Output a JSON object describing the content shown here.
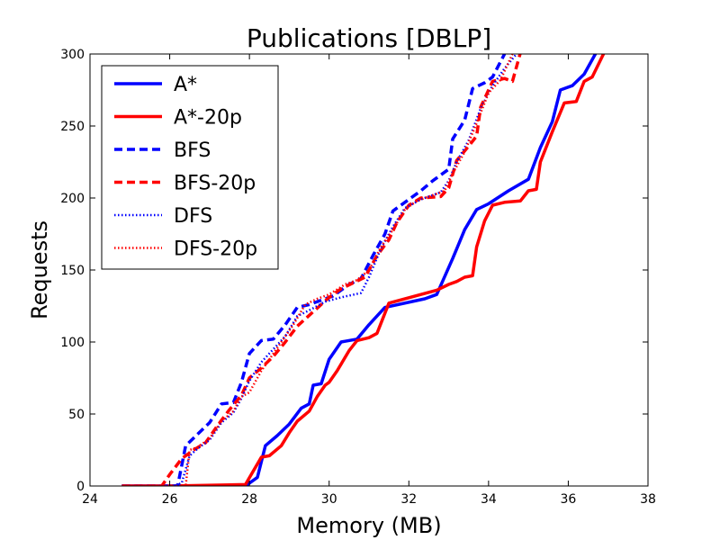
{
  "chart_data": {
    "type": "line",
    "title": "Publications [DBLP]",
    "xlabel": "Memory (MB)",
    "ylabel": "Requests",
    "xlim": [
      24,
      38
    ],
    "ylim": [
      0,
      300
    ],
    "xticks": [
      24,
      26,
      28,
      30,
      32,
      34,
      36,
      38
    ],
    "yticks": [
      0,
      50,
      100,
      150,
      200,
      250,
      300
    ],
    "legend_position": "top-left",
    "grid": false,
    "series": [
      {
        "name": "A*",
        "color": "#0000ff",
        "style": "solid",
        "points": [
          [
            24.8,
            0
          ],
          [
            27.9,
            0
          ],
          [
            28.2,
            6
          ],
          [
            28.4,
            28
          ],
          [
            28.7,
            35
          ],
          [
            29.0,
            43
          ],
          [
            29.3,
            54
          ],
          [
            29.5,
            57
          ],
          [
            29.6,
            70
          ],
          [
            29.8,
            71
          ],
          [
            30.0,
            88
          ],
          [
            30.3,
            100
          ],
          [
            30.7,
            102
          ],
          [
            31.0,
            112
          ],
          [
            31.4,
            124
          ],
          [
            32.4,
            130
          ],
          [
            32.7,
            133
          ],
          [
            33.1,
            158
          ],
          [
            33.4,
            178
          ],
          [
            33.7,
            192
          ],
          [
            34.0,
            196
          ],
          [
            34.5,
            205
          ],
          [
            35.0,
            213
          ],
          [
            35.3,
            235
          ],
          [
            35.6,
            253
          ],
          [
            35.8,
            275
          ],
          [
            36.1,
            278
          ],
          [
            36.4,
            286
          ],
          [
            36.7,
            301
          ]
        ]
      },
      {
        "name": "A*-20p",
        "color": "#ff0000",
        "style": "solid",
        "points": [
          [
            24.8,
            0
          ],
          [
            26.0,
            0
          ],
          [
            27.9,
            1
          ],
          [
            28.3,
            20
          ],
          [
            28.5,
            21
          ],
          [
            28.8,
            28
          ],
          [
            29.0,
            37
          ],
          [
            29.2,
            45
          ],
          [
            29.5,
            52
          ],
          [
            29.7,
            62
          ],
          [
            29.9,
            70
          ],
          [
            30.0,
            72
          ],
          [
            30.2,
            80
          ],
          [
            30.5,
            94
          ],
          [
            30.7,
            101
          ],
          [
            31.0,
            103
          ],
          [
            31.2,
            106
          ],
          [
            31.5,
            127
          ],
          [
            32.7,
            136
          ],
          [
            33.0,
            140
          ],
          [
            33.2,
            142
          ],
          [
            33.4,
            145
          ],
          [
            33.6,
            146
          ],
          [
            33.7,
            166
          ],
          [
            33.9,
            184
          ],
          [
            34.1,
            195
          ],
          [
            34.4,
            197
          ],
          [
            34.8,
            198
          ],
          [
            35.0,
            205
          ],
          [
            35.2,
            206
          ],
          [
            35.3,
            225
          ],
          [
            35.6,
            246
          ],
          [
            35.9,
            266
          ],
          [
            36.2,
            267
          ],
          [
            36.4,
            281
          ],
          [
            36.6,
            284
          ],
          [
            36.9,
            301
          ]
        ]
      },
      {
        "name": "BFS",
        "color": "#0000ff",
        "style": "dashed",
        "points": [
          [
            24.8,
            0
          ],
          [
            26.2,
            0
          ],
          [
            26.4,
            28
          ],
          [
            26.7,
            36
          ],
          [
            27.0,
            44
          ],
          [
            27.3,
            57
          ],
          [
            27.6,
            58
          ],
          [
            27.8,
            72
          ],
          [
            28.0,
            92
          ],
          [
            28.3,
            101
          ],
          [
            28.6,
            102
          ],
          [
            28.9,
            112
          ],
          [
            29.2,
            124
          ],
          [
            29.5,
            126
          ],
          [
            29.8,
            129
          ],
          [
            30.1,
            132
          ],
          [
            30.5,
            140
          ],
          [
            30.8,
            144
          ],
          [
            31.1,
            160
          ],
          [
            31.4,
            175
          ],
          [
            31.6,
            191
          ],
          [
            31.9,
            197
          ],
          [
            32.3,
            205
          ],
          [
            32.6,
            212
          ],
          [
            33.0,
            220
          ],
          [
            33.1,
            241
          ],
          [
            33.4,
            254
          ],
          [
            33.6,
            276
          ],
          [
            33.9,
            280
          ],
          [
            34.1,
            284
          ],
          [
            34.4,
            300
          ]
        ]
      },
      {
        "name": "BFS-20p",
        "color": "#ff0000",
        "style": "dashed",
        "points": [
          [
            24.8,
            0
          ],
          [
            25.8,
            0
          ],
          [
            26.0,
            8
          ],
          [
            26.3,
            19
          ],
          [
            26.6,
            25
          ],
          [
            26.9,
            30
          ],
          [
            27.2,
            42
          ],
          [
            27.5,
            53
          ],
          [
            27.8,
            63
          ],
          [
            28.0,
            75
          ],
          [
            28.3,
            82
          ],
          [
            28.6,
            90
          ],
          [
            28.9,
            100
          ],
          [
            29.2,
            111
          ],
          [
            29.6,
            121
          ],
          [
            30.0,
            131
          ],
          [
            30.3,
            137
          ],
          [
            30.6,
            141
          ],
          [
            30.9,
            145
          ],
          [
            31.2,
            160
          ],
          [
            31.5,
            171
          ],
          [
            31.7,
            183
          ],
          [
            32.0,
            195
          ],
          [
            32.3,
            200
          ],
          [
            32.8,
            201
          ],
          [
            33.0,
            207
          ],
          [
            33.2,
            226
          ],
          [
            33.5,
            236
          ],
          [
            33.7,
            243
          ],
          [
            33.8,
            263
          ],
          [
            34.1,
            281
          ],
          [
            34.4,
            283
          ],
          [
            34.6,
            281
          ],
          [
            34.8,
            301
          ]
        ]
      },
      {
        "name": "DFS",
        "color": "#0000ff",
        "style": "dotted",
        "points": [
          [
            24.8,
            0
          ],
          [
            26.1,
            0
          ],
          [
            26.3,
            2
          ],
          [
            26.5,
            21
          ],
          [
            26.7,
            26
          ],
          [
            27.0,
            32
          ],
          [
            27.3,
            44
          ],
          [
            27.6,
            51
          ],
          [
            27.8,
            61
          ],
          [
            28.0,
            73
          ],
          [
            28.3,
            86
          ],
          [
            28.6,
            95
          ],
          [
            28.9,
            104
          ],
          [
            29.2,
            118
          ],
          [
            29.5,
            122
          ],
          [
            29.9,
            128
          ],
          [
            30.3,
            131
          ],
          [
            30.8,
            134
          ],
          [
            31.0,
            145
          ],
          [
            31.3,
            165
          ],
          [
            31.6,
            180
          ],
          [
            31.9,
            193
          ],
          [
            32.3,
            199
          ],
          [
            32.8,
            204
          ],
          [
            33.0,
            212
          ],
          [
            33.2,
            225
          ],
          [
            33.5,
            240
          ],
          [
            33.8,
            262
          ],
          [
            34.1,
            278
          ],
          [
            34.4,
            290
          ],
          [
            34.7,
            300
          ]
        ]
      },
      {
        "name": "DFS-20p",
        "color": "#ff0000",
        "style": "dotted",
        "points": [
          [
            24.8,
            0
          ],
          [
            26.4,
            0
          ],
          [
            26.5,
            25
          ],
          [
            26.7,
            27
          ],
          [
            27.0,
            33
          ],
          [
            27.3,
            45
          ],
          [
            27.6,
            52
          ],
          [
            27.8,
            62
          ],
          [
            28.0,
            65
          ],
          [
            28.3,
            80
          ],
          [
            28.5,
            88
          ],
          [
            28.8,
            100
          ],
          [
            29.1,
            112
          ],
          [
            29.4,
            126
          ],
          [
            29.7,
            130
          ],
          [
            30.0,
            133
          ],
          [
            30.4,
            140
          ],
          [
            30.7,
            143
          ],
          [
            31.0,
            150
          ],
          [
            31.3,
            166
          ],
          [
            31.6,
            178
          ],
          [
            31.9,
            192
          ],
          [
            32.2,
            198
          ],
          [
            32.6,
            202
          ],
          [
            32.9,
            205
          ],
          [
            33.1,
            217
          ],
          [
            33.4,
            232
          ],
          [
            33.7,
            252
          ],
          [
            34.0,
            273
          ],
          [
            34.3,
            282
          ],
          [
            34.6,
            300
          ]
        ]
      }
    ]
  }
}
